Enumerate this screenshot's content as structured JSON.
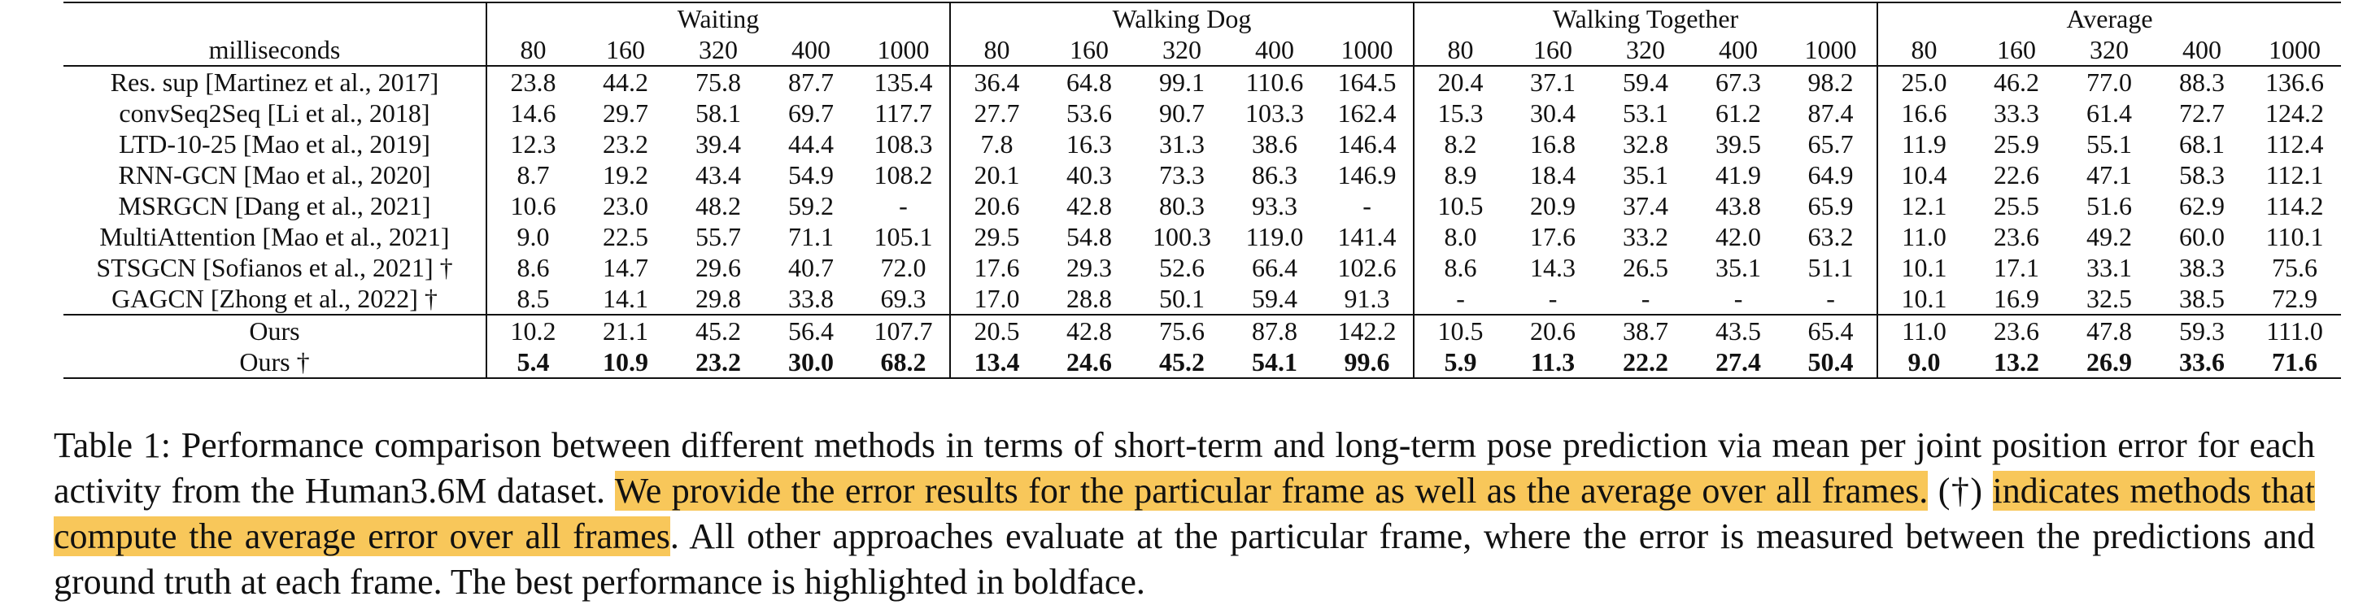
{
  "table": {
    "corner_label": "milliseconds",
    "groups": [
      "Waiting",
      "Walking Dog",
      "Walking Together",
      "Average"
    ],
    "horizons": [
      "80",
      "160",
      "320",
      "400",
      "1000"
    ],
    "rows": [
      {
        "method": "Res. sup  [Martinez et al., 2017]",
        "values": [
          "23.8",
          "44.2",
          "75.8",
          "87.7",
          "135.4",
          "36.4",
          "64.8",
          "99.1",
          "110.6",
          "164.5",
          "20.4",
          "37.1",
          "59.4",
          "67.3",
          "98.2",
          "25.0",
          "46.2",
          "77.0",
          "88.3",
          "136.6"
        ]
      },
      {
        "method": "convSeq2Seq  [Li et al., 2018]",
        "values": [
          "14.6",
          "29.7",
          "58.1",
          "69.7",
          "117.7",
          "27.7",
          "53.6",
          "90.7",
          "103.3",
          "162.4",
          "15.3",
          "30.4",
          "53.1",
          "61.2",
          "87.4",
          "16.6",
          "33.3",
          "61.4",
          "72.7",
          "124.2"
        ]
      },
      {
        "method": "LTD-10-25 [Mao et al., 2019]",
        "values": [
          "12.3",
          "23.2",
          "39.4",
          "44.4",
          "108.3",
          "7.8",
          "16.3",
          "31.3",
          "38.6",
          "146.4",
          "8.2",
          "16.8",
          "32.8",
          "39.5",
          "65.7",
          "11.9",
          "25.9",
          "55.1",
          "68.1",
          "112.4"
        ]
      },
      {
        "method": "RNN-GCN [Mao et al., 2020]",
        "values": [
          "8.7",
          "19.2",
          "43.4",
          "54.9",
          "108.2",
          "20.1",
          "40.3",
          "73.3",
          "86.3",
          "146.9",
          "8.9",
          "18.4",
          "35.1",
          "41.9",
          "64.9",
          "10.4",
          "22.6",
          "47.1",
          "58.3",
          "112.1"
        ]
      },
      {
        "method": "MSRGCN [Dang et al., 2021]",
        "values": [
          "10.6",
          "23.0",
          "48.2",
          "59.2",
          "-",
          "20.6",
          "42.8",
          "80.3",
          "93.3",
          "-",
          "10.5",
          "20.9",
          "37.4",
          "43.8",
          "65.9",
          "12.1",
          "25.5",
          "51.6",
          "62.9",
          "114.2"
        ]
      },
      {
        "method": "MultiAttention [Mao et al., 2021]",
        "values": [
          "9.0",
          "22.5",
          "55.7",
          "71.1",
          "105.1",
          "29.5",
          "54.8",
          "100.3",
          "119.0",
          "141.4",
          "8.0",
          "17.6",
          "33.2",
          "42.0",
          "63.2",
          "11.0",
          "23.6",
          "49.2",
          "60.0",
          "110.1"
        ]
      },
      {
        "method": "STSGCN [Sofianos et al., 2021] †",
        "values": [
          "8.6",
          "14.7",
          "29.6",
          "40.7",
          "72.0",
          "17.6",
          "29.3",
          "52.6",
          "66.4",
          "102.6",
          "8.6",
          "14.3",
          "26.5",
          "35.1",
          "51.1",
          "10.1",
          "17.1",
          "33.1",
          "38.3",
          "75.6"
        ]
      },
      {
        "method": "GAGCN [Zhong et al., 2022] †",
        "values": [
          "8.5",
          "14.1",
          "29.8",
          "33.8",
          "69.3",
          "17.0",
          "28.8",
          "50.1",
          "59.4",
          "91.3",
          "-",
          "-",
          "-",
          "-",
          "-",
          "10.1",
          "16.9",
          "32.5",
          "38.5",
          "72.9"
        ]
      },
      {
        "method": "Ours",
        "values": [
          "10.2",
          "21.1",
          "45.2",
          "56.4",
          "107.7",
          "20.5",
          "42.8",
          "75.6",
          "87.8",
          "142.2",
          "10.5",
          "20.6",
          "38.7",
          "43.5",
          "65.4",
          "11.0",
          "23.6",
          "47.8",
          "59.3",
          "111.0"
        ]
      },
      {
        "method": "Ours †",
        "values": [
          "5.4",
          "10.9",
          "23.2",
          "30.0",
          "68.2",
          "13.4",
          "24.6",
          "45.2",
          "54.1",
          "99.6",
          "5.9",
          "11.3",
          "22.2",
          "27.4",
          "50.4",
          "9.0",
          "13.2",
          "26.9",
          "33.6",
          "71.6"
        ],
        "bold": true
      }
    ]
  },
  "caption": {
    "part1": "Table 1: Performance comparison between different methods in terms of short-term and long-term pose prediction via mean per joint position error for each activity from the Human3.6M dataset. ",
    "highlight1": "We provide the error results for the particular frame as well as the average over all frames.",
    "part2": " (†) ",
    "highlight2": "indicates methods that compute the average error over all frames",
    "part3": ". All other approaches evaluate at the particular frame, where the error is measured between the predictions and ground truth at each frame. The best performance is highlighted in boldface."
  },
  "colors": {
    "highlight": "#f8c75a"
  }
}
